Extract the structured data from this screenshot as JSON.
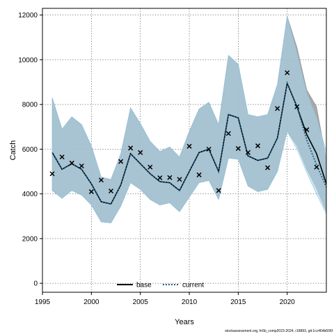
{
  "chart_data": {
    "type": "line",
    "title": "",
    "xlabel": "Years",
    "ylabel": "Catch",
    "xlim": [
      1995,
      2024
    ],
    "ylim": [
      -400,
      12300
    ],
    "x_ticks": [
      1995,
      2000,
      2005,
      2010,
      2015,
      2020
    ],
    "y_ticks": [
      0,
      2000,
      4000,
      6000,
      8000,
      10000,
      12000
    ],
    "grid": true,
    "legend_position": "bottom-center",
    "colors": {
      "base": "#000000",
      "current": "#1a5f8a",
      "base_band": "#9a9a9a",
      "current_band": "#a9d6ec",
      "observed": "#000000"
    },
    "years": [
      1996,
      1997,
      1998,
      1999,
      2000,
      2001,
      2002,
      2003,
      2004,
      2005,
      2006,
      2007,
      2008,
      2009,
      2010,
      2011,
      2012,
      2013,
      2014,
      2015,
      2016,
      2017,
      2018,
      2019,
      2020,
      2021,
      2022,
      2023,
      2024
    ],
    "observed": [
      4900,
      5650,
      5380,
      5250,
      4100,
      4620,
      4130,
      5450,
      6050,
      5850,
      5200,
      4720,
      4730,
      4650,
      6130,
      4850,
      6000,
      4150,
      6700,
      6030,
      5850,
      6150,
      5170,
      7820,
      9420,
      7900,
      6870,
      5200,
      null
    ],
    "series": [
      {
        "name": "base",
        "style": "solid",
        "values": [
          5850,
          5100,
          5350,
          5100,
          4450,
          3650,
          3550,
          4400,
          5800,
          5350,
          4900,
          4550,
          4500,
          4150,
          5000,
          5850,
          6000,
          5000,
          7550,
          7400,
          5700,
          5500,
          5600,
          6500,
          8950,
          7900,
          6650,
          5800,
          4450
        ],
        "lower": [
          4150,
          3800,
          4150,
          3950,
          3500,
          2750,
          2700,
          3450,
          4500,
          4200,
          3750,
          3500,
          3600,
          3200,
          3850,
          4500,
          4600,
          3750,
          5600,
          5550,
          4350,
          4100,
          4200,
          5000,
          6800,
          6150,
          5100,
          4250,
          3200
        ],
        "upper": [
          8300,
          6900,
          7450,
          7100,
          6150,
          4750,
          4650,
          5800,
          7850,
          7150,
          6350,
          5900,
          6100,
          5650,
          6800,
          7800,
          8100,
          7100,
          10200,
          9800,
          7550,
          7450,
          7550,
          8900,
          11950,
          10550,
          8650,
          7900,
          5500
        ]
      },
      {
        "name": "current",
        "style": "dotted",
        "values": [
          5850,
          5100,
          5350,
          5100,
          4450,
          3650,
          3550,
          4400,
          5800,
          5350,
          4900,
          4550,
          4500,
          4150,
          5000,
          5850,
          6000,
          5000,
          7550,
          7400,
          5700,
          5500,
          5600,
          6500,
          8950,
          7900,
          6400,
          5300,
          4300
        ],
        "lower": [
          4150,
          3800,
          4150,
          3950,
          3500,
          2750,
          2700,
          3450,
          4500,
          4200,
          3750,
          3500,
          3600,
          3200,
          3850,
          4500,
          4600,
          3750,
          5600,
          5550,
          4350,
          4100,
          4200,
          5000,
          6800,
          6000,
          4950,
          4000,
          3100
        ],
        "upper": [
          8300,
          6900,
          7450,
          7100,
          6150,
          4750,
          4650,
          5800,
          7850,
          7150,
          6350,
          5900,
          6100,
          5650,
          6800,
          7800,
          8100,
          7100,
          10200,
          9800,
          7550,
          7450,
          7550,
          8900,
          11950,
          10300,
          8500,
          7400,
          5900
        ]
      }
    ]
  },
  "footer": {
    "source": "stockassessment.org, fn5b_comp2023-2024, r18893, git:1cc464b606f"
  }
}
